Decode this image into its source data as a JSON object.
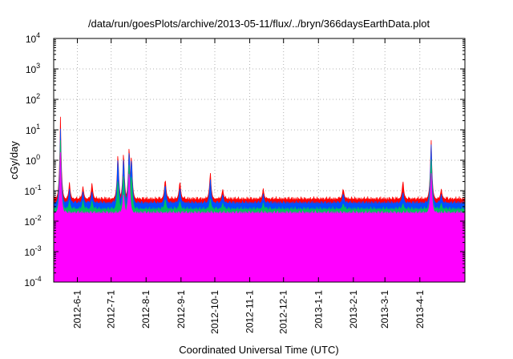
{
  "chart_data": {
    "type": "area",
    "title": "/data/run/goesPlots/archive/2013-05-11/flux/../bryn/366daysEarthData.plot",
    "xlabel": "Coordinated Universal Time (UTC)",
    "ylabel": "cGy/day",
    "y_scale": "log",
    "ylim": [
      0.0001,
      10000
    ],
    "xlim": [
      "2012-05-11",
      "2013-05-11"
    ],
    "grid": true,
    "legend": "none",
    "y_ticks": [
      {
        "value": 0.0001,
        "base": "10",
        "exp": "-4"
      },
      {
        "value": 0.001,
        "base": "10",
        "exp": "-3"
      },
      {
        "value": 0.01,
        "base": "10",
        "exp": "-2"
      },
      {
        "value": 0.1,
        "base": "10",
        "exp": "-1"
      },
      {
        "value": 1,
        "base": "10",
        "exp": "0"
      },
      {
        "value": 10,
        "base": "10",
        "exp": "1"
      },
      {
        "value": 100,
        "base": "10",
        "exp": "2"
      },
      {
        "value": 1000,
        "base": "10",
        "exp": "3"
      },
      {
        "value": 10000,
        "base": "10",
        "exp": "4"
      }
    ],
    "x_ticks": [
      "2012-6-1",
      "2012-7-1",
      "2012-8-1",
      "2012-9-1",
      "2012-10-1",
      "2012-11-1",
      "2012-12-1",
      "2013-1-1",
      "2013-2-1",
      "2013-3-1",
      "2013-4-1"
    ],
    "series": [
      {
        "color": "#ff0000",
        "baseline": 0.052,
        "peaks": [
          [
            "2012-05-17",
            30
          ],
          [
            "2012-05-25",
            0.2
          ],
          [
            "2012-06-06",
            0.15
          ],
          [
            "2012-06-14",
            0.2
          ],
          [
            "2012-07-07",
            2.5
          ],
          [
            "2012-07-12",
            3
          ],
          [
            "2012-07-17",
            5.5
          ],
          [
            "2012-07-19",
            2.5
          ],
          [
            "2012-08-18",
            0.3
          ],
          [
            "2012-08-31",
            0.25
          ],
          [
            "2012-09-27",
            0.5
          ],
          [
            "2012-10-08",
            0.12
          ],
          [
            "2012-11-13",
            0.12
          ],
          [
            "2013-01-23",
            0.13
          ],
          [
            "2013-03-17",
            0.25
          ],
          [
            "2013-04-11",
            7
          ],
          [
            "2013-04-20",
            0.12
          ]
        ]
      },
      {
        "color": "#0050ff",
        "baseline": 0.038,
        "peaks": [
          [
            "2012-05-17",
            12
          ],
          [
            "2012-05-25",
            0.12
          ],
          [
            "2012-06-06",
            0.1
          ],
          [
            "2012-06-14",
            0.1
          ],
          [
            "2012-07-07",
            1.8
          ],
          [
            "2012-07-12",
            2
          ],
          [
            "2012-07-17",
            4
          ],
          [
            "2012-07-19",
            2
          ],
          [
            "2012-08-18",
            0.2
          ],
          [
            "2012-08-31",
            0.15
          ],
          [
            "2012-09-27",
            0.3
          ],
          [
            "2012-10-08",
            0.08
          ],
          [
            "2012-11-13",
            0.08
          ],
          [
            "2013-01-23",
            0.09
          ],
          [
            "2013-03-17",
            0.1
          ],
          [
            "2013-04-11",
            5
          ],
          [
            "2013-04-20",
            0.08
          ]
        ]
      },
      {
        "color": "#00c060",
        "baseline": 0.024,
        "peaks": [
          [
            "2012-05-17",
            5
          ],
          [
            "2012-05-25",
            0.05
          ],
          [
            "2012-06-06",
            0.05
          ],
          [
            "2012-06-14",
            0.05
          ],
          [
            "2012-07-07",
            0.3
          ],
          [
            "2012-07-12",
            0.5
          ],
          [
            "2012-07-17",
            1.5
          ],
          [
            "2012-07-19",
            0.5
          ],
          [
            "2012-08-18",
            0.06
          ],
          [
            "2012-08-31",
            0.05
          ],
          [
            "2012-09-27",
            0.06
          ],
          [
            "2012-10-08",
            0.04
          ],
          [
            "2012-11-13",
            0.04
          ],
          [
            "2013-01-23",
            0.04
          ],
          [
            "2013-03-17",
            0.04
          ],
          [
            "2013-04-11",
            1.5
          ],
          [
            "2013-04-20",
            0.04
          ]
        ]
      },
      {
        "color": "#ff00ff",
        "baseline": 0.018,
        "floor": 0.003,
        "peaks": [
          [
            "2012-05-17",
            2
          ],
          [
            "2012-07-12",
            0.1
          ],
          [
            "2012-07-17",
            0.7
          ],
          [
            "2013-04-11",
            0.5
          ]
        ]
      }
    ]
  }
}
